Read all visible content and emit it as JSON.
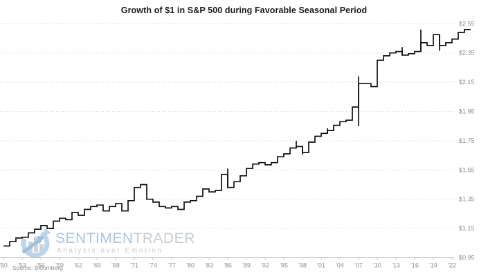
{
  "title": "Growth of $1 in S&P 500 during Favorable Seasonal Period",
  "source": "Source: Bloomberg",
  "watermark": {
    "brand_primary": "SENTIMEN",
    "brand_secondary": "TRADER",
    "tagline": "Analysis over Emotion",
    "logo_icon": "circular-arrows-bar-chart"
  },
  "colors": {
    "line": "#111111",
    "grid": "#dadada",
    "axis": "#bfbfbf",
    "tick_text": "#8e8e8e",
    "title_text": "#1a1a1a",
    "watermark_blue": "#a9c6e2",
    "watermark_gray": "#c9cdd1"
  },
  "chart_data": {
    "type": "line",
    "subtype": "step",
    "title": "Growth of $1 in S&P 500 during Favorable Seasonal Period",
    "xlabel": "",
    "ylabel": "",
    "grid": "horizontal-dotted",
    "legend": "none",
    "y_axis_side": "right",
    "ylim": [
      0.95,
      2.55
    ],
    "y_ticks": [
      {
        "label": "$2.55",
        "value": 2.55
      },
      {
        "label": "$2.35",
        "value": 2.35
      },
      {
        "label": "$2.15",
        "value": 2.15
      },
      {
        "label": "$1.95",
        "value": 1.95
      },
      {
        "label": "$1.75",
        "value": 1.75
      },
      {
        "label": "$1.55",
        "value": 1.55
      },
      {
        "label": "$1.35",
        "value": 1.35
      },
      {
        "label": "$1.15",
        "value": 1.15
      },
      {
        "label": "$0.95",
        "value": 0.95
      }
    ],
    "x_ticks": [
      {
        "label": "'50",
        "year": 1950
      },
      {
        "label": "'53",
        "year": 1953
      },
      {
        "label": "'56",
        "year": 1956
      },
      {
        "label": "'59",
        "year": 1959
      },
      {
        "label": "'62",
        "year": 1962
      },
      {
        "label": "'65",
        "year": 1965
      },
      {
        "label": "'68",
        "year": 1968
      },
      {
        "label": "'71",
        "year": 1971
      },
      {
        "label": "'74",
        "year": 1974
      },
      {
        "label": "'77",
        "year": 1977
      },
      {
        "label": "'80",
        "year": 1980
      },
      {
        "label": "'83",
        "year": 1983
      },
      {
        "label": "'86",
        "year": 1986
      },
      {
        "label": "'89",
        "year": 1989
      },
      {
        "label": "'92",
        "year": 1992
      },
      {
        "label": "'95",
        "year": 1995
      },
      {
        "label": "'98",
        "year": 1998
      },
      {
        "label": "'01",
        "year": 2001
      },
      {
        "label": "'04",
        "year": 2004
      },
      {
        "label": "'07",
        "year": 2007
      },
      {
        "label": "'10",
        "year": 2010
      },
      {
        "label": "'13",
        "year": 2013
      },
      {
        "label": "'16",
        "year": 2016
      },
      {
        "label": "'19",
        "year": 2019
      },
      {
        "label": "'22",
        "year": 2022
      }
    ],
    "series": [
      {
        "name": "Growth of $1 (favorable seasonal period)",
        "start_year": 1950,
        "values": [
          1.03,
          1.06,
          1.085,
          1.09,
          1.12,
          1.145,
          1.17,
          1.15,
          1.2,
          1.22,
          1.21,
          1.26,
          1.24,
          1.28,
          1.3,
          1.31,
          1.27,
          1.3,
          1.32,
          1.27,
          1.34,
          1.43,
          1.45,
          1.35,
          1.33,
          1.3,
          1.29,
          1.3,
          1.28,
          1.33,
          1.34,
          1.37,
          1.42,
          1.4,
          1.41,
          1.52,
          1.43,
          1.47,
          1.51,
          1.56,
          1.59,
          1.6,
          1.585,
          1.6,
          1.64,
          1.66,
          1.7,
          1.71,
          1.67,
          1.74,
          1.78,
          1.8,
          1.82,
          1.855,
          1.88,
          1.89,
          1.98,
          2.14,
          2.14,
          2.12,
          2.3,
          2.33,
          2.35,
          2.36,
          2.335,
          2.345,
          2.36,
          2.42,
          2.4,
          2.475,
          2.4,
          2.42,
          2.445,
          2.49,
          2.51
        ]
      }
    ],
    "wicks": [
      {
        "at": 1986,
        "hi": 1.56
      },
      {
        "at": 1997,
        "hi": 1.75
      },
      {
        "at": 1998,
        "lo": 1.655
      },
      {
        "at": 2002,
        "hi": 1.835
      },
      {
        "at": 2007,
        "hi": 2.19,
        "lo": 1.85
      },
      {
        "at": 2014,
        "hi": 2.39
      },
      {
        "at": 2017,
        "hi": 2.51,
        "lo": 2.365
      },
      {
        "at": 2020,
        "lo": 2.365
      }
    ]
  }
}
